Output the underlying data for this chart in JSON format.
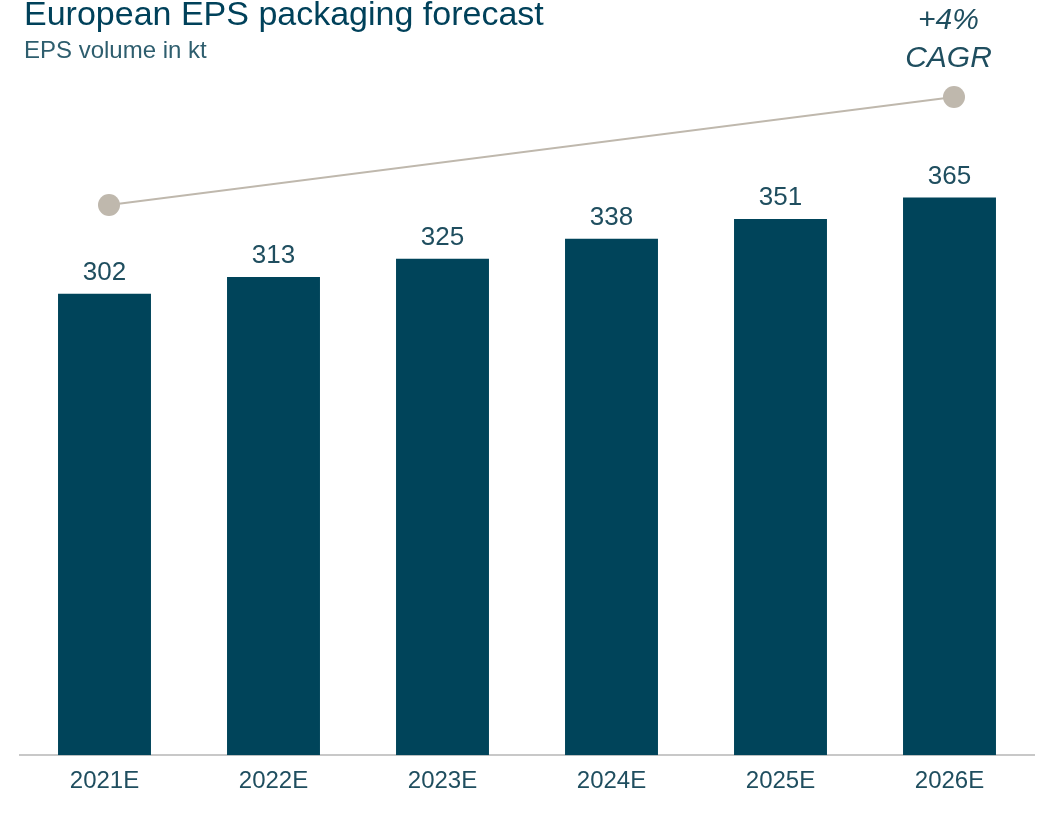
{
  "chart_data": {
    "type": "bar",
    "title": "European EPS packaging forecast",
    "subtitle": "EPS volume in kt",
    "categories": [
      "2021E",
      "2022E",
      "2023E",
      "2024E",
      "2025E",
      "2026E"
    ],
    "values": [
      302,
      313,
      325,
      338,
      351,
      365
    ],
    "color": "#00445a",
    "data_labels": true,
    "grid": false,
    "legend": false,
    "annotations": [
      "+4% CAGR"
    ]
  }
}
